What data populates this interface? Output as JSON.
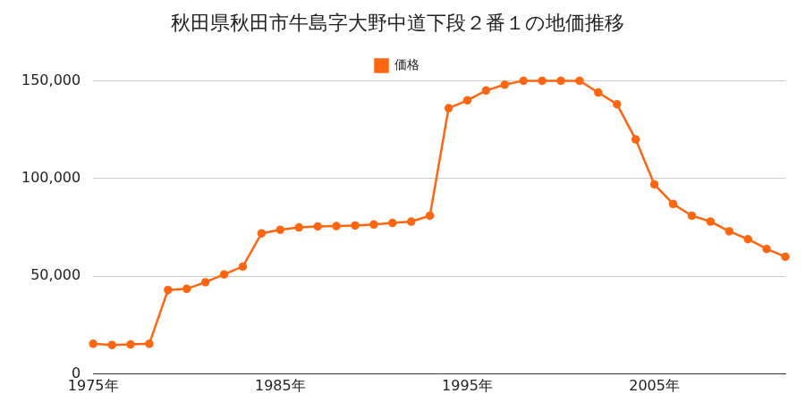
{
  "chart_data": {
    "type": "line",
    "title": "秋田県秋田市牛島字大野中道下段２番１の地価推移",
    "categories": [
      "1975年",
      null,
      null,
      null,
      null,
      null,
      null,
      null,
      null,
      null,
      "1985年",
      null,
      null,
      null,
      null,
      null,
      null,
      null,
      null,
      null,
      "1995年",
      null,
      null,
      null,
      null,
      null,
      null,
      null,
      null,
      null,
      "2005年",
      null,
      null,
      null,
      null,
      null,
      null,
      null
    ],
    "series": [
      {
        "name": "価格",
        "color": "#ff6611",
        "marker": "circle",
        "values": [
          15500,
          14900,
          15200,
          15500,
          43000,
          43600,
          47000,
          51000,
          55000,
          72000,
          73800,
          75000,
          75500,
          75700,
          76000,
          76500,
          77300,
          78000,
          81000,
          136000,
          140000,
          145000,
          148000,
          150000,
          150000,
          150000,
          150000,
          144000,
          138000,
          120000,
          97000,
          87000,
          81000,
          78000,
          73000,
          69000,
          64000,
          60000
        ]
      }
    ],
    "ylim": [
      0,
      150000
    ],
    "yticks": [
      0,
      {
        "value": 50000,
        "label": "50,000"
      },
      {
        "value": 100000,
        "label": "100,000"
      },
      {
        "value": 150000,
        "label": "150,000"
      }
    ],
    "grid": true,
    "legend": "top"
  }
}
